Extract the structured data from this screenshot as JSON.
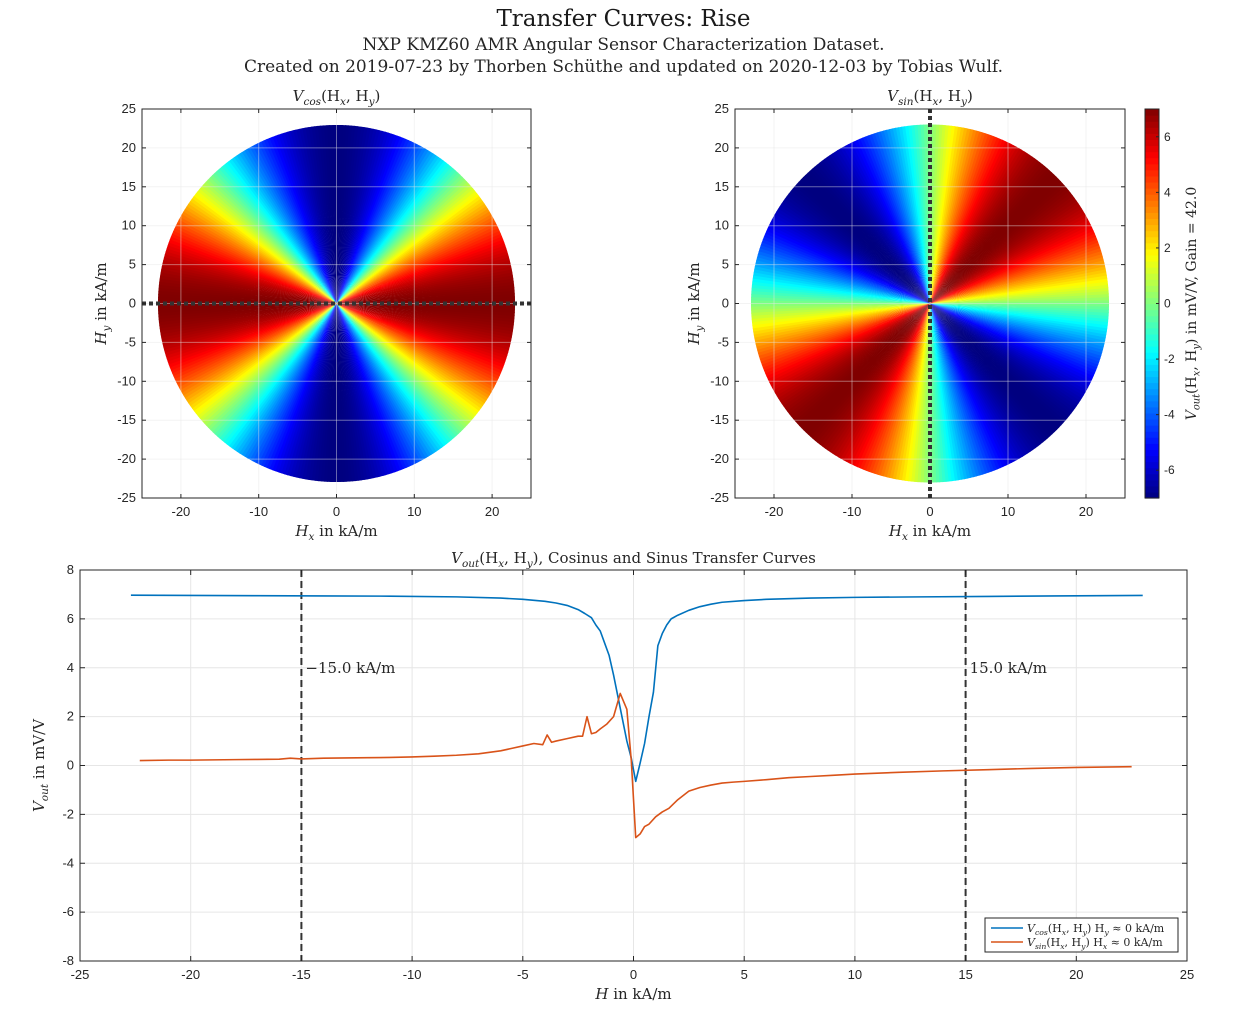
{
  "figure": {
    "title": "Transfer Curves: Rise",
    "subtitle_line1": "NXP KMZ60 AMR Angular Sensor Characterization Dataset.",
    "subtitle_line2": "Created on 2019-07-23 by Thorben Schüthe and updated on 2020-12-03 by Tobias Wulf."
  },
  "colors": {
    "cos_line": "#0072BD",
    "sin_line": "#D95319",
    "marker_line": "#333333",
    "grid": "#e6e6e6"
  },
  "chart_data": [
    {
      "type": "heatmap",
      "title_main": "V",
      "title_sub": "cos",
      "title_args": "(H",
      "title_args_x": "x",
      "title_args_sep": ", H",
      "title_args_y": "y",
      "title_close": ")",
      "xlabel_main": "H",
      "xlabel_sub": "x",
      "xlabel_rest": " in kA/m",
      "ylabel_main": "H",
      "ylabel_sub": "y",
      "ylabel_rest": " in kA/m",
      "xlim": [
        -25,
        25
      ],
      "ylim": [
        -25,
        25
      ],
      "xticks": [
        -20,
        -10,
        0,
        10,
        20
      ],
      "yticks": [
        25,
        20,
        15,
        10,
        5,
        0,
        -5,
        -10,
        -15,
        -20,
        -25
      ],
      "field_radius_kA_per_m": 22.5,
      "function": "cos",
      "amplitude_mV_per_V": 7,
      "marker_line": "horizontal dotted line at Hy = 0",
      "grid": true
    },
    {
      "type": "heatmap",
      "title_main": "V",
      "title_sub": "sin",
      "title_args": "(H",
      "title_args_x": "x",
      "title_args_sep": ", H",
      "title_args_y": "y",
      "title_close": ")",
      "xlabel_main": "H",
      "xlabel_sub": "x",
      "xlabel_rest": " in kA/m",
      "ylabel_main": "H",
      "ylabel_sub": "y",
      "ylabel_rest": " in kA/m",
      "xlim": [
        -25,
        25
      ],
      "ylim": [
        -25,
        25
      ],
      "xticks": [
        -20,
        -10,
        0,
        10,
        20
      ],
      "yticks": [
        25,
        20,
        15,
        10,
        5,
        0,
        -5,
        -10,
        -15,
        -20,
        -25
      ],
      "field_radius_kA_per_m": 22.5,
      "function": "sin",
      "amplitude_mV_per_V": 7,
      "marker_line": "vertical dotted line at Hx = 0",
      "grid": true,
      "colorbar": {
        "ticks": [
          6,
          4,
          2,
          0,
          -2,
          -4,
          -6
        ],
        "range": [
          -7,
          7
        ],
        "colormap": "jet",
        "label_main": "V",
        "label_sub": "out",
        "label_args": "(H",
        "label_args_x": "x",
        "label_args_sep": ", H",
        "label_args_y": "y",
        "label_rest": ") in mV/V, Gain = 42.0"
      }
    },
    {
      "type": "line",
      "title_main": "V",
      "title_sub": "out",
      "title_args": "(H",
      "title_args_x": "x",
      "title_args_sep": ", H",
      "title_args_y": "y",
      "title_rest": "), Cosinus and Sinus Transfer Curves",
      "xlabel_main": "H",
      "xlabel_rest": " in kA/m",
      "ylabel_main": "V",
      "ylabel_sub": "out",
      "ylabel_rest": " in mV/V",
      "xlim": [
        -25,
        25
      ],
      "ylim": [
        -8,
        8
      ],
      "xticks": [
        -25,
        -20,
        -15,
        -10,
        -5,
        0,
        5,
        10,
        15,
        20,
        25
      ],
      "yticks": [
        8,
        6,
        4,
        2,
        0,
        -2,
        -4,
        -6,
        -8
      ],
      "grid": true,
      "legend_position": "bottom-right",
      "vlines": [
        {
          "x": -15,
          "label": "−15.0 kA/m"
        },
        {
          "x": 15,
          "label": "15.0 kA/m"
        }
      ],
      "series": [
        {
          "name_main": "V",
          "name_sub": "cos",
          "name_args": "(H",
          "name_args_x": "x",
          "name_args_sep": ", H",
          "name_args_y": "y",
          "name_rest1": ") H",
          "name_rest_sub": "y",
          "name_rest2": " ≈ 0 kA/m",
          "x": [
            -22.7,
            -20,
            -17,
            -14,
            -11,
            -8,
            -6,
            -5,
            -4,
            -3.5,
            -3,
            -2.5,
            -2.2,
            -1.9,
            -1.7,
            -1.5,
            -1.3,
            -1.1,
            -0.9,
            -0.7,
            -0.5,
            -0.3,
            -0.1,
            0.1,
            0.3,
            0.5,
            0.7,
            0.9,
            1.1,
            1.3,
            1.5,
            1.7,
            2.0,
            2.5,
            3.0,
            3.5,
            4,
            5,
            6,
            8,
            10,
            13,
            16,
            19,
            21,
            23
          ],
          "y": [
            6.97,
            6.96,
            6.95,
            6.94,
            6.93,
            6.9,
            6.85,
            6.8,
            6.72,
            6.65,
            6.55,
            6.38,
            6.22,
            6.05,
            5.75,
            5.5,
            5.0,
            4.5,
            3.7,
            2.8,
            1.9,
            1.0,
            0.3,
            -0.65,
            0.1,
            0.9,
            2.0,
            3.0,
            4.9,
            5.4,
            5.75,
            6.0,
            6.15,
            6.35,
            6.5,
            6.6,
            6.68,
            6.75,
            6.8,
            6.85,
            6.88,
            6.9,
            6.92,
            6.94,
            6.95,
            6.96
          ]
        },
        {
          "name_main": "V",
          "name_sub": "sin",
          "name_args": "(H",
          "name_args_x": "x",
          "name_args_sep": ", H",
          "name_args_y": "y",
          "name_rest1": ") H",
          "name_rest_sub": "x",
          "name_rest2": " ≈ 0 kA/m",
          "x": [
            -22.3,
            -21,
            -20,
            -19,
            -18,
            -17,
            -16,
            -15.5,
            -15,
            -14,
            -13,
            -12,
            -11,
            -10,
            -9,
            -8,
            -7,
            -6,
            -5.5,
            -5,
            -4.5,
            -4.1,
            -3.9,
            -3.7,
            -3.5,
            -3.0,
            -2.5,
            -2.3,
            -2.1,
            -1.9,
            -1.7,
            -1.5,
            -1.2,
            -0.9,
            -0.6,
            -0.3,
            -0.1,
            0.1,
            0.3,
            0.5,
            0.7,
            1.0,
            1.3,
            1.6,
            2.0,
            2.5,
            3.0,
            3.5,
            4,
            4.5,
            5,
            6,
            7,
            8,
            9,
            10,
            12,
            14,
            16,
            18,
            20,
            22.5
          ],
          "y": [
            0.2,
            0.22,
            0.22,
            0.23,
            0.24,
            0.25,
            0.26,
            0.3,
            0.27,
            0.3,
            0.31,
            0.32,
            0.33,
            0.35,
            0.38,
            0.42,
            0.48,
            0.6,
            0.7,
            0.8,
            0.9,
            0.85,
            1.25,
            0.95,
            1.0,
            1.1,
            1.2,
            1.2,
            2.0,
            1.3,
            1.35,
            1.5,
            1.7,
            2.0,
            2.95,
            2.3,
            0.2,
            -2.95,
            -2.8,
            -2.5,
            -2.4,
            -2.1,
            -1.9,
            -1.75,
            -1.4,
            -1.05,
            -0.9,
            -0.8,
            -0.72,
            -0.68,
            -0.65,
            -0.58,
            -0.5,
            -0.45,
            -0.4,
            -0.35,
            -0.28,
            -0.22,
            -0.17,
            -0.12,
            -0.08,
            -0.05
          ]
        }
      ]
    }
  ]
}
